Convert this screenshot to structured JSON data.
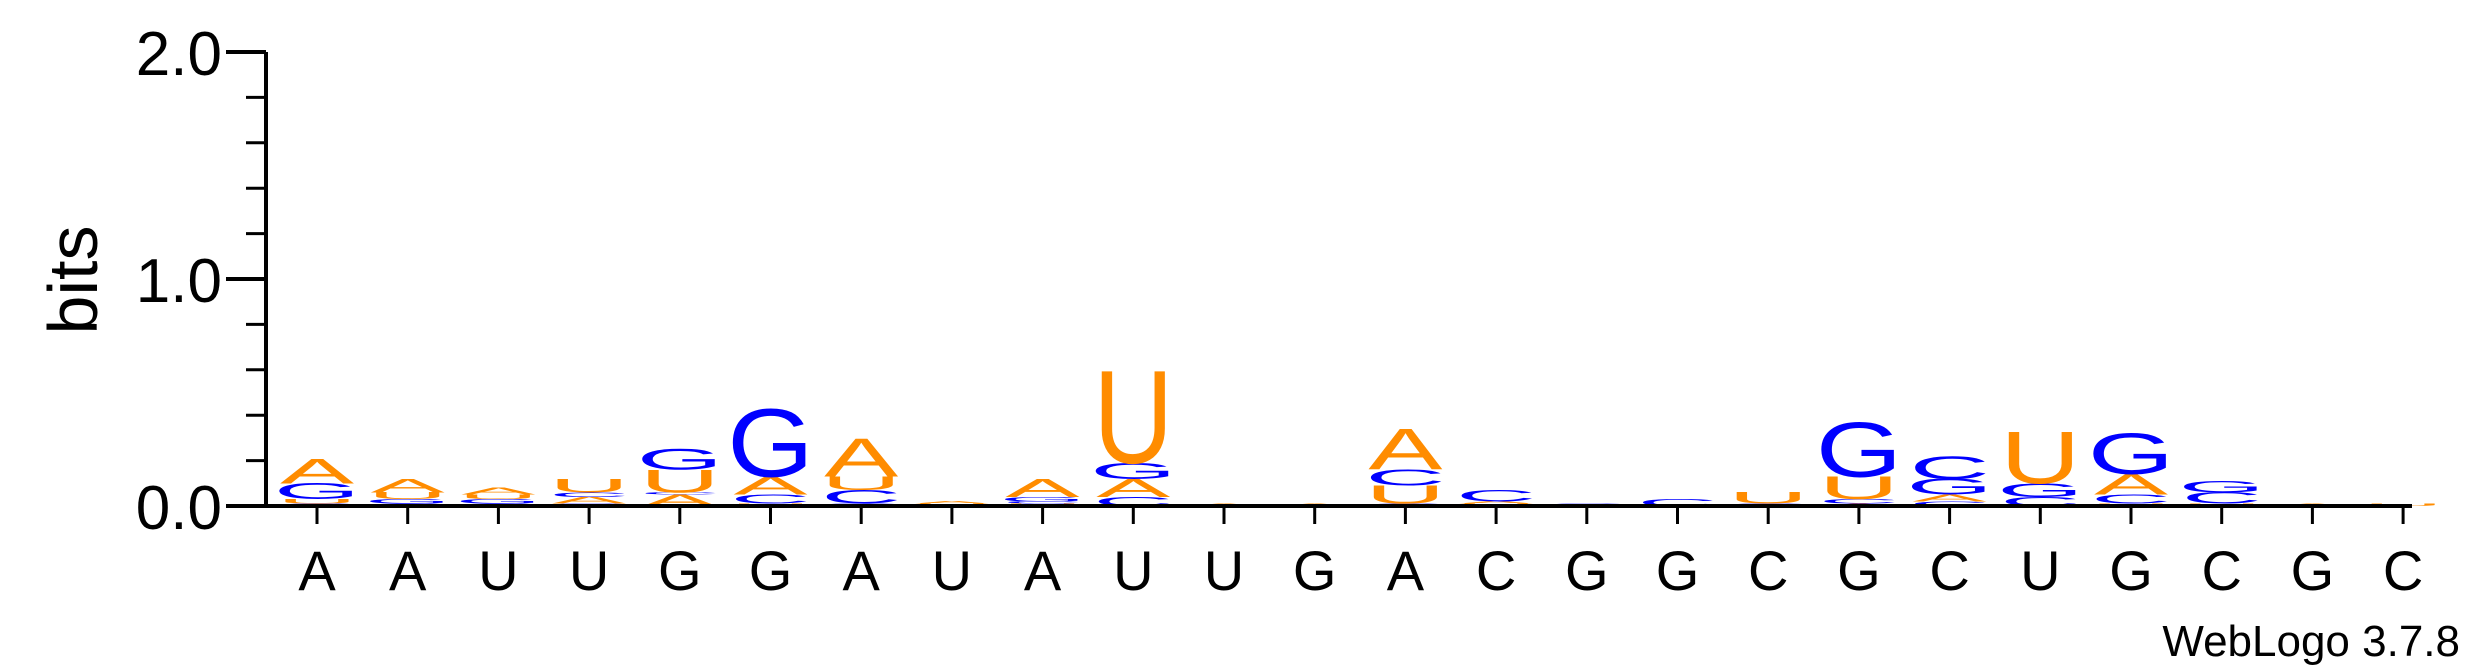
{
  "chart_data": {
    "type": "sequence-logo",
    "ylabel": "bits",
    "ylim": [
      0,
      2.0
    ],
    "y_ticks": [
      "0.0",
      "1.0",
      "2.0"
    ],
    "x_labels": [
      "A",
      "A",
      "U",
      "U",
      "G",
      "G",
      "A",
      "U",
      "A",
      "U",
      "U",
      "G",
      "A",
      "C",
      "G",
      "G",
      "C",
      "G",
      "C",
      "U",
      "G",
      "C",
      "G",
      "C"
    ],
    "footer": "WebLogo 3.7.8",
    "colors": {
      "A": "#ff8c00",
      "U": "#ff8c00",
      "G": "#0000ff",
      "C": "#0000ff"
    },
    "columns": [
      [
        [
          "C",
          0.01
        ],
        [
          "U",
          0.02
        ],
        [
          "G",
          0.07
        ],
        [
          "A",
          0.11
        ]
      ],
      [
        [
          "C",
          0.01
        ],
        [
          "G",
          0.02
        ],
        [
          "U",
          0.03
        ],
        [
          "A",
          0.06
        ]
      ],
      [
        [
          "C",
          0.01
        ],
        [
          "G",
          0.02
        ],
        [
          "U",
          0.02
        ],
        [
          "A",
          0.03
        ]
      ],
      [
        [
          "G",
          0.01
        ],
        [
          "A",
          0.03
        ],
        [
          "C",
          0.02
        ],
        [
          "U",
          0.06
        ]
      ],
      [
        [
          "A",
          0.05
        ],
        [
          "C",
          0.01
        ],
        [
          "U",
          0.1
        ],
        [
          "G",
          0.09
        ]
      ],
      [
        [
          "U",
          0.01
        ],
        [
          "C",
          0.04
        ],
        [
          "A",
          0.08
        ],
        [
          "G",
          0.3
        ]
      ],
      [
        [
          "G",
          0.01
        ],
        [
          "C",
          0.06
        ],
        [
          "U",
          0.06
        ],
        [
          "A",
          0.17
        ]
      ],
      [
        [
          "U",
          0.01
        ],
        [
          "A",
          0.01
        ]
      ],
      [
        [
          "U",
          0.01
        ],
        [
          "C",
          0.01
        ],
        [
          "G",
          0.02
        ],
        [
          "A",
          0.08
        ]
      ],
      [
        [
          "C",
          0.04
        ],
        [
          "A",
          0.08
        ],
        [
          "G",
          0.07
        ],
        [
          "U",
          0.41
        ]
      ],
      [
        [
          "A",
          0.01
        ]
      ],
      [
        [
          "A",
          0.01
        ]
      ],
      [
        [
          "C",
          0.01
        ],
        [
          "U",
          0.08
        ],
        [
          "C",
          0.07
        ],
        [
          "A",
          0.18
        ]
      ],
      [
        [
          "U",
          0.01
        ],
        [
          "A",
          0.01
        ],
        [
          "C",
          0.05
        ]
      ],
      [
        [
          "G",
          0.01
        ]
      ],
      [
        [
          "C",
          0.03
        ]
      ],
      [
        [
          "G",
          0.01
        ],
        [
          "U",
          0.05
        ]
      ],
      [
        [
          "A",
          0.01
        ],
        [
          "C",
          0.02
        ],
        [
          "U",
          0.1
        ],
        [
          "G",
          0.24
        ]
      ],
      [
        [
          "C",
          0.02
        ],
        [
          "A",
          0.03
        ],
        [
          "G",
          0.07
        ],
        [
          "C",
          0.1
        ]
      ],
      [
        [
          "C",
          0.04
        ],
        [
          "G",
          0.06
        ],
        [
          "U",
          0.23
        ]
      ],
      [
        [
          "U",
          0.01
        ],
        [
          "C",
          0.04
        ],
        [
          "A",
          0.09
        ],
        [
          "G",
          0.18
        ]
      ],
      [
        [
          "U",
          0.01
        ],
        [
          "C",
          0.05
        ],
        [
          "G",
          0.05
        ]
      ],
      [
        [
          "A",
          0.01
        ]
      ],
      [
        [
          "U",
          0.01
        ]
      ]
    ]
  }
}
